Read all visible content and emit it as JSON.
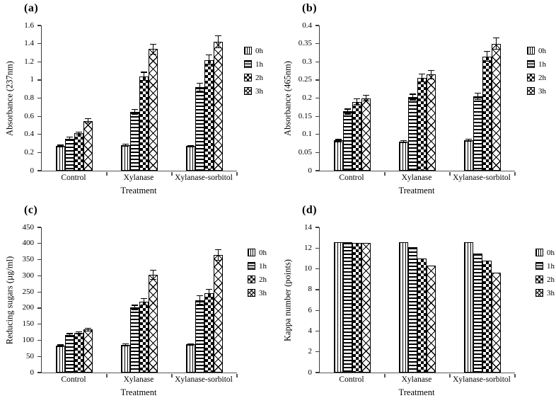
{
  "figure": {
    "background": "#ffffff",
    "axis_color": "#3d3d3d",
    "bar_fill": "#ffffff",
    "bar_stroke": "#000000",
    "text_color": "#000000"
  },
  "chart_data": [
    {
      "panel": "(a)",
      "type": "bar",
      "xlabel": "Treatment",
      "ylabel": "Absorbance (237nm)",
      "categories": [
        "Control",
        "Xylanase",
        "Xylanase-sorbitol"
      ],
      "ylim": [
        0,
        1.6
      ],
      "ytick_values": [
        0,
        0.2,
        0.4,
        0.6,
        0.8,
        1,
        1.2,
        1.4,
        1.6
      ],
      "ytick_labels": [
        "0",
        "0.2",
        "0.4",
        "0.6",
        "0.8",
        "1",
        "1.2",
        "1.4",
        "1.6"
      ],
      "grid": false,
      "legend_position": "right",
      "error_bars": true,
      "series": [
        {
          "name": "0h",
          "pattern": "vertical-stripes",
          "values": [
            0.27,
            0.28,
            0.27
          ],
          "errors": [
            0.015,
            0.015,
            0.012
          ]
        },
        {
          "name": "1h",
          "pattern": "horizontal-stripes",
          "values": [
            0.35,
            0.65,
            0.92
          ],
          "errors": [
            0.025,
            0.03,
            0.05
          ]
        },
        {
          "name": "2h",
          "pattern": "checkerboard",
          "values": [
            0.41,
            1.04,
            1.22
          ],
          "errors": [
            0.02,
            0.05,
            0.06
          ]
        },
        {
          "name": "3h",
          "pattern": "diagonal-crosshatch",
          "values": [
            0.55,
            1.34,
            1.42
          ],
          "errors": [
            0.03,
            0.06,
            0.07
          ]
        }
      ]
    },
    {
      "panel": "(b)",
      "type": "bar",
      "xlabel": "Treatment",
      "ylabel": "Absorbance (465nm)",
      "categories": [
        "Control",
        "Xylanase",
        "Xylanase-sorbitol"
      ],
      "ylim": [
        0,
        0.4
      ],
      "ytick_values": [
        0,
        0.05,
        0.1,
        0.15,
        0.2,
        0.25,
        0.3,
        0.35,
        0.4
      ],
      "ytick_labels": [
        "0",
        "0.05",
        "0.1",
        "0.15",
        "0.2",
        "0.25",
        "0.3",
        "0.35",
        "0.4"
      ],
      "grid": false,
      "legend_position": "right",
      "error_bars": true,
      "series": [
        {
          "name": "0h",
          "pattern": "vertical-stripes",
          "values": [
            0.083,
            0.08,
            0.084
          ],
          "errors": [
            0.004,
            0.004,
            0.004
          ]
        },
        {
          "name": "1h",
          "pattern": "horizontal-stripes",
          "values": [
            0.163,
            0.203,
            0.205
          ],
          "errors": [
            0.008,
            0.009,
            0.01
          ]
        },
        {
          "name": "2h",
          "pattern": "checkerboard",
          "values": [
            0.19,
            0.255,
            0.315
          ],
          "errors": [
            0.009,
            0.012,
            0.015
          ]
        },
        {
          "name": "3h",
          "pattern": "diagonal-crosshatch",
          "values": [
            0.2,
            0.265,
            0.35
          ],
          "errors": [
            0.009,
            0.013,
            0.017
          ]
        }
      ]
    },
    {
      "panel": "(c)",
      "type": "bar",
      "xlabel": "Treatment",
      "ylabel": "Reducing sugars (µg/ml)",
      "categories": [
        "Control",
        "Xylanase",
        "Xylanase-sorbitol"
      ],
      "ylim": [
        0,
        450
      ],
      "ytick_values": [
        0,
        50,
        100,
        150,
        200,
        250,
        300,
        350,
        400,
        450
      ],
      "ytick_labels": [
        "0",
        "50",
        "100",
        "150",
        "200",
        "250",
        "300",
        "350",
        "400",
        "450"
      ],
      "grid": false,
      "legend_position": "right",
      "error_bars": true,
      "series": [
        {
          "name": "0h",
          "pattern": "vertical-stripes",
          "values": [
            83,
            86,
            87
          ],
          "errors": [
            4,
            5,
            4
          ]
        },
        {
          "name": "1h",
          "pattern": "horizontal-stripes",
          "values": [
            116,
            202,
            225
          ],
          "errors": [
            6,
            8,
            15
          ]
        },
        {
          "name": "2h",
          "pattern": "checkerboard",
          "values": [
            123,
            220,
            246
          ],
          "errors": [
            5,
            11,
            13
          ]
        },
        {
          "name": "3h",
          "pattern": "diagonal-crosshatch",
          "values": [
            133,
            303,
            364
          ],
          "errors": [
            6,
            15,
            18
          ]
        }
      ]
    },
    {
      "panel": "(d)",
      "type": "bar",
      "xlabel": "Treatment",
      "ylabel": "Kappa number (points)",
      "categories": [
        "Control",
        "Xylanase",
        "Xylanase-sorbitol"
      ],
      "ylim": [
        0,
        14
      ],
      "ytick_values": [
        0,
        2,
        4,
        6,
        8,
        10,
        12,
        14
      ],
      "ytick_labels": [
        "0",
        "2",
        "4",
        "6",
        "8",
        "10",
        "12",
        "14"
      ],
      "grid": false,
      "legend_position": "right",
      "error_bars": false,
      "series": [
        {
          "name": "0h",
          "pattern": "vertical-stripes",
          "values": [
            12.6,
            12.6,
            12.6
          ],
          "errors": null
        },
        {
          "name": "1h",
          "pattern": "horizontal-stripes",
          "values": [
            12.6,
            12.1,
            11.5
          ],
          "errors": null
        },
        {
          "name": "2h",
          "pattern": "checkerboard",
          "values": [
            12.5,
            11.0,
            10.8
          ],
          "errors": null
        },
        {
          "name": "3h",
          "pattern": "diagonal-crosshatch",
          "values": [
            12.5,
            10.3,
            9.6
          ],
          "errors": null
        }
      ]
    }
  ]
}
